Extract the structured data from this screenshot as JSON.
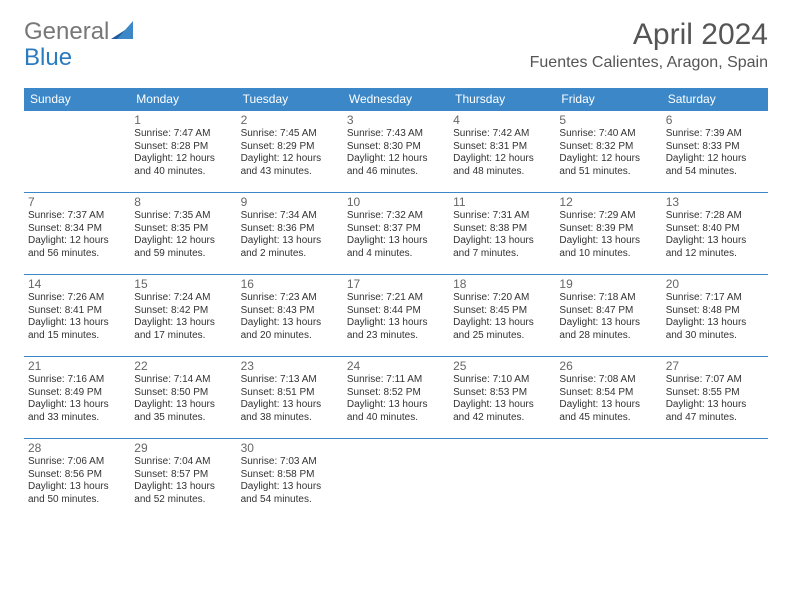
{
  "logo": {
    "part1": "General",
    "part2": "Blue"
  },
  "title": "April 2024",
  "location": "Fuentes Calientes, Aragon, Spain",
  "colors": {
    "header_bg": "#3b87c8",
    "header_text": "#ffffff",
    "border": "#3b87c8",
    "logo_accent": "#2b7bbf",
    "text": "#333333",
    "muted": "#666666",
    "background": "#ffffff"
  },
  "typography": {
    "title_fontsize": 30,
    "location_fontsize": 16,
    "dayheader_fontsize": 12,
    "daynum_fontsize": 12,
    "info_fontsize": 10
  },
  "day_names": [
    "Sunday",
    "Monday",
    "Tuesday",
    "Wednesday",
    "Thursday",
    "Friday",
    "Saturday"
  ],
  "grid": [
    [
      null,
      {
        "n": "1",
        "sr": "Sunrise: 7:47 AM",
        "ss": "Sunset: 8:28 PM",
        "d1": "Daylight: 12 hours",
        "d2": "and 40 minutes."
      },
      {
        "n": "2",
        "sr": "Sunrise: 7:45 AM",
        "ss": "Sunset: 8:29 PM",
        "d1": "Daylight: 12 hours",
        "d2": "and 43 minutes."
      },
      {
        "n": "3",
        "sr": "Sunrise: 7:43 AM",
        "ss": "Sunset: 8:30 PM",
        "d1": "Daylight: 12 hours",
        "d2": "and 46 minutes."
      },
      {
        "n": "4",
        "sr": "Sunrise: 7:42 AM",
        "ss": "Sunset: 8:31 PM",
        "d1": "Daylight: 12 hours",
        "d2": "and 48 minutes."
      },
      {
        "n": "5",
        "sr": "Sunrise: 7:40 AM",
        "ss": "Sunset: 8:32 PM",
        "d1": "Daylight: 12 hours",
        "d2": "and 51 minutes."
      },
      {
        "n": "6",
        "sr": "Sunrise: 7:39 AM",
        "ss": "Sunset: 8:33 PM",
        "d1": "Daylight: 12 hours",
        "d2": "and 54 minutes."
      }
    ],
    [
      {
        "n": "7",
        "sr": "Sunrise: 7:37 AM",
        "ss": "Sunset: 8:34 PM",
        "d1": "Daylight: 12 hours",
        "d2": "and 56 minutes."
      },
      {
        "n": "8",
        "sr": "Sunrise: 7:35 AM",
        "ss": "Sunset: 8:35 PM",
        "d1": "Daylight: 12 hours",
        "d2": "and 59 minutes."
      },
      {
        "n": "9",
        "sr": "Sunrise: 7:34 AM",
        "ss": "Sunset: 8:36 PM",
        "d1": "Daylight: 13 hours",
        "d2": "and 2 minutes."
      },
      {
        "n": "10",
        "sr": "Sunrise: 7:32 AM",
        "ss": "Sunset: 8:37 PM",
        "d1": "Daylight: 13 hours",
        "d2": "and 4 minutes."
      },
      {
        "n": "11",
        "sr": "Sunrise: 7:31 AM",
        "ss": "Sunset: 8:38 PM",
        "d1": "Daylight: 13 hours",
        "d2": "and 7 minutes."
      },
      {
        "n": "12",
        "sr": "Sunrise: 7:29 AM",
        "ss": "Sunset: 8:39 PM",
        "d1": "Daylight: 13 hours",
        "d2": "and 10 minutes."
      },
      {
        "n": "13",
        "sr": "Sunrise: 7:28 AM",
        "ss": "Sunset: 8:40 PM",
        "d1": "Daylight: 13 hours",
        "d2": "and 12 minutes."
      }
    ],
    [
      {
        "n": "14",
        "sr": "Sunrise: 7:26 AM",
        "ss": "Sunset: 8:41 PM",
        "d1": "Daylight: 13 hours",
        "d2": "and 15 minutes."
      },
      {
        "n": "15",
        "sr": "Sunrise: 7:24 AM",
        "ss": "Sunset: 8:42 PM",
        "d1": "Daylight: 13 hours",
        "d2": "and 17 minutes."
      },
      {
        "n": "16",
        "sr": "Sunrise: 7:23 AM",
        "ss": "Sunset: 8:43 PM",
        "d1": "Daylight: 13 hours",
        "d2": "and 20 minutes."
      },
      {
        "n": "17",
        "sr": "Sunrise: 7:21 AM",
        "ss": "Sunset: 8:44 PM",
        "d1": "Daylight: 13 hours",
        "d2": "and 23 minutes."
      },
      {
        "n": "18",
        "sr": "Sunrise: 7:20 AM",
        "ss": "Sunset: 8:45 PM",
        "d1": "Daylight: 13 hours",
        "d2": "and 25 minutes."
      },
      {
        "n": "19",
        "sr": "Sunrise: 7:18 AM",
        "ss": "Sunset: 8:47 PM",
        "d1": "Daylight: 13 hours",
        "d2": "and 28 minutes."
      },
      {
        "n": "20",
        "sr": "Sunrise: 7:17 AM",
        "ss": "Sunset: 8:48 PM",
        "d1": "Daylight: 13 hours",
        "d2": "and 30 minutes."
      }
    ],
    [
      {
        "n": "21",
        "sr": "Sunrise: 7:16 AM",
        "ss": "Sunset: 8:49 PM",
        "d1": "Daylight: 13 hours",
        "d2": "and 33 minutes."
      },
      {
        "n": "22",
        "sr": "Sunrise: 7:14 AM",
        "ss": "Sunset: 8:50 PM",
        "d1": "Daylight: 13 hours",
        "d2": "and 35 minutes."
      },
      {
        "n": "23",
        "sr": "Sunrise: 7:13 AM",
        "ss": "Sunset: 8:51 PM",
        "d1": "Daylight: 13 hours",
        "d2": "and 38 minutes."
      },
      {
        "n": "24",
        "sr": "Sunrise: 7:11 AM",
        "ss": "Sunset: 8:52 PM",
        "d1": "Daylight: 13 hours",
        "d2": "and 40 minutes."
      },
      {
        "n": "25",
        "sr": "Sunrise: 7:10 AM",
        "ss": "Sunset: 8:53 PM",
        "d1": "Daylight: 13 hours",
        "d2": "and 42 minutes."
      },
      {
        "n": "26",
        "sr": "Sunrise: 7:08 AM",
        "ss": "Sunset: 8:54 PM",
        "d1": "Daylight: 13 hours",
        "d2": "and 45 minutes."
      },
      {
        "n": "27",
        "sr": "Sunrise: 7:07 AM",
        "ss": "Sunset: 8:55 PM",
        "d1": "Daylight: 13 hours",
        "d2": "and 47 minutes."
      }
    ],
    [
      {
        "n": "28",
        "sr": "Sunrise: 7:06 AM",
        "ss": "Sunset: 8:56 PM",
        "d1": "Daylight: 13 hours",
        "d2": "and 50 minutes."
      },
      {
        "n": "29",
        "sr": "Sunrise: 7:04 AM",
        "ss": "Sunset: 8:57 PM",
        "d1": "Daylight: 13 hours",
        "d2": "and 52 minutes."
      },
      {
        "n": "30",
        "sr": "Sunrise: 7:03 AM",
        "ss": "Sunset: 8:58 PM",
        "d1": "Daylight: 13 hours",
        "d2": "and 54 minutes."
      },
      null,
      null,
      null,
      null
    ]
  ]
}
